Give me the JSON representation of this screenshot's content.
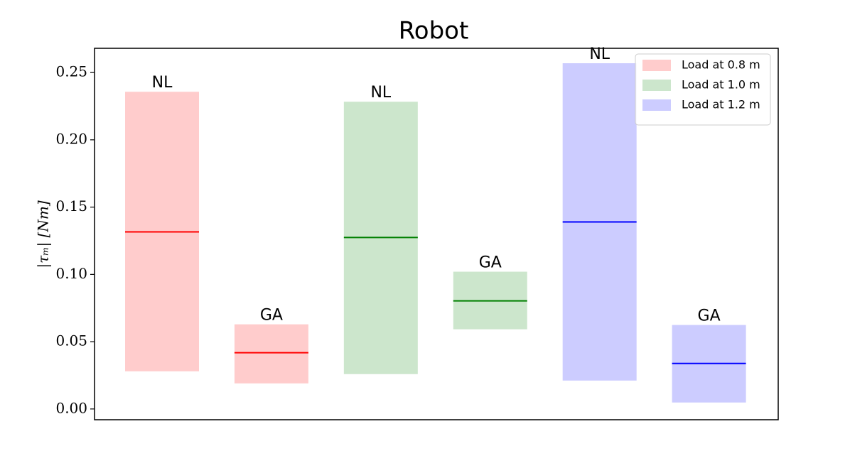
{
  "chart_data": {
    "type": "range-bar",
    "title": "Robot",
    "ylabel": "|τₘ| [Nm]",
    "bar_labels": [
      "NL",
      "GA"
    ],
    "series": [
      {
        "name": "Load at 0.8 m",
        "color": "#ff0000",
        "low": [
          0.028,
          0.019
        ],
        "high": [
          0.2357,
          0.0629
        ],
        "mid": [
          0.1316,
          0.0418
        ]
      },
      {
        "name": "Load at 1.0 m",
        "color": "#008000",
        "low": [
          0.0259,
          0.0592
        ],
        "high": [
          0.2283,
          0.102
        ],
        "mid": [
          0.1274,
          0.0803
        ]
      },
      {
        "name": "Load at 1.2 m",
        "color": "#0000ff",
        "low": [
          0.0211,
          0.0048
        ],
        "high": [
          0.2569,
          0.0624
        ],
        "mid": [
          0.139,
          0.0338
        ]
      }
    ],
    "fill_opacity": 0.2,
    "ylim": [
      -0.008,
      0.268
    ],
    "yticks": [
      {
        "value": 0,
        "label": "0.00"
      },
      0.05,
      {
        "value": 0.1,
        "label": "0.10"
      },
      0.15,
      {
        "value": 0.2,
        "label": "0.20"
      },
      0.25
    ],
    "legend": "upper right"
  }
}
